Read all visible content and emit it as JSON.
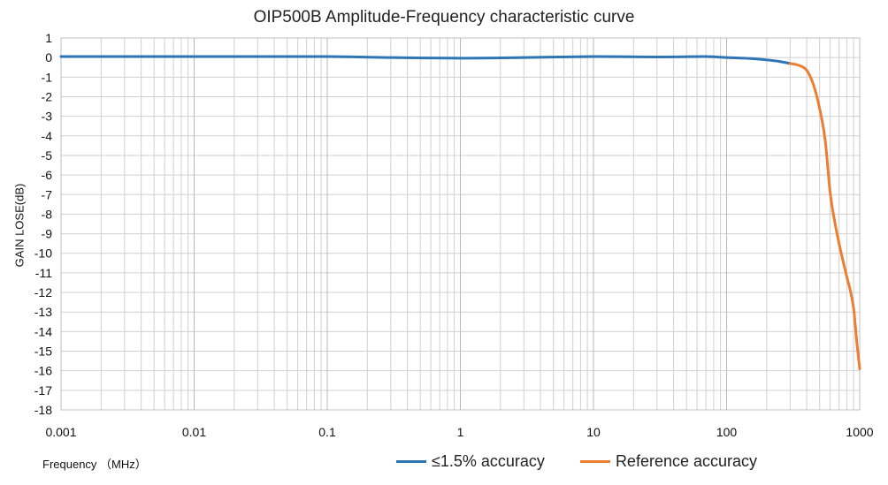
{
  "colors": {
    "series1": "#2e75b6",
    "series2": "#ed7d31",
    "grid": "#d0d0d0",
    "frame": "#bfbfbf"
  },
  "chart_data": {
    "type": "line",
    "title": "OIP500B Amplitude-Frequency characteristic curve",
    "xlabel": "Frequency （MHz）",
    "ylabel": "GAIN LOSE(dB)",
    "xscale": "log",
    "xlim": [
      0.001,
      1000
    ],
    "ylim": [
      -18,
      1
    ],
    "x_tick_labels": [
      "0.001",
      "0.01",
      "0.1",
      "1",
      "10",
      "100",
      "1000"
    ],
    "y_tick_labels": [
      "1",
      "0",
      "-1",
      "-2",
      "-3",
      "-4",
      "-5",
      "-6",
      "-7",
      "-8",
      "-9",
      "-10",
      "-11",
      "-12",
      "-13",
      "-14",
      "-15",
      "-16",
      "-17",
      "-18"
    ],
    "grid": true,
    "legend": "bottom",
    "series": [
      {
        "name": "≤1.5% accuracy",
        "x": [
          0.001,
          0.01,
          0.1,
          0.3,
          1,
          3,
          10,
          30,
          70,
          100,
          150,
          200,
          250,
          300
        ],
        "y": [
          0.05,
          0.05,
          0.05,
          0,
          -0.03,
          0,
          0.05,
          0.03,
          0.05,
          0,
          -0.05,
          -0.12,
          -0.2,
          -0.3
        ]
      },
      {
        "name": "Reference accuracy",
        "x": [
          300,
          350,
          400,
          450,
          500,
          550,
          600,
          650,
          700,
          750,
          800,
          850,
          900,
          950,
          1000
        ],
        "y": [
          -0.3,
          -0.4,
          -0.65,
          -1.4,
          -2.6,
          -4.2,
          -6.9,
          -8.4,
          -9.5,
          -10.4,
          -11.2,
          -11.9,
          -12.8,
          -14.5,
          -15.9
        ]
      }
    ]
  }
}
